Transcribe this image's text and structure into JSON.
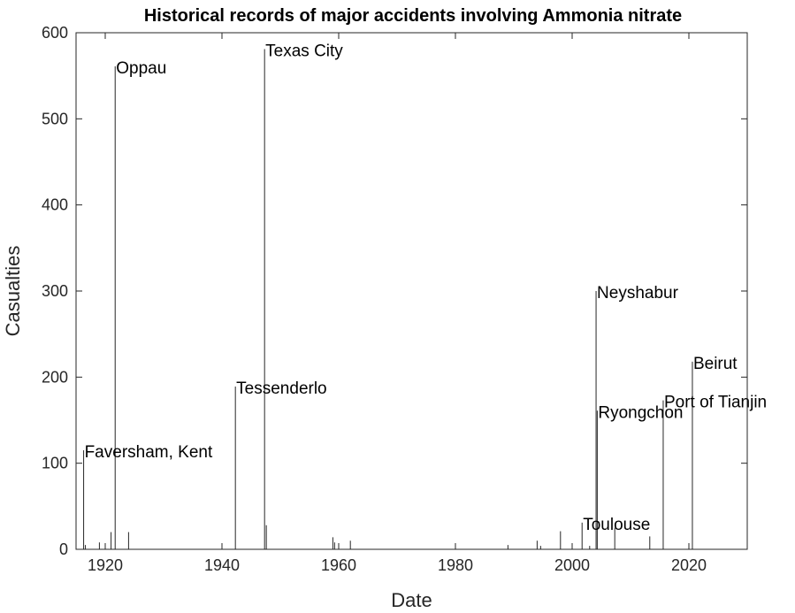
{
  "chart_data": {
    "type": "stem",
    "title": "Historical records of major accidents involving Ammonia nitrate",
    "xlabel": "Date",
    "ylabel": "Casualties",
    "xlim": [
      1915,
      2030
    ],
    "ylim": [
      0,
      600
    ],
    "xticks": [
      1920,
      1940,
      1960,
      1980,
      2000,
      2020
    ],
    "yticks": [
      0,
      100,
      200,
      300,
      400,
      500,
      600
    ],
    "grid": false,
    "line_color": "#262626",
    "points": [
      {
        "x": 1916.3,
        "y": 115,
        "label": "Faversham, Kent"
      },
      {
        "x": 1916.6,
        "y": 5,
        "label": ""
      },
      {
        "x": 1919.0,
        "y": 8,
        "label": ""
      },
      {
        "x": 1921.0,
        "y": 20,
        "label": ""
      },
      {
        "x": 1921.7,
        "y": 561,
        "label": "Oppau"
      },
      {
        "x": 1924.0,
        "y": 20,
        "label": ""
      },
      {
        "x": 1942.3,
        "y": 189,
        "label": "Tessenderlo"
      },
      {
        "x": 1947.3,
        "y": 581,
        "label": "Texas City"
      },
      {
        "x": 1947.6,
        "y": 28,
        "label": ""
      },
      {
        "x": 1959.0,
        "y": 14,
        "label": ""
      },
      {
        "x": 1959.3,
        "y": 8,
        "label": ""
      },
      {
        "x": 1962.0,
        "y": 10,
        "label": ""
      },
      {
        "x": 1989.0,
        "y": 5,
        "label": ""
      },
      {
        "x": 1994.0,
        "y": 10,
        "label": ""
      },
      {
        "x": 1994.6,
        "y": 4,
        "label": ""
      },
      {
        "x": 1998.0,
        "y": 21,
        "label": ""
      },
      {
        "x": 2001.7,
        "y": 31,
        "label": "Toulouse"
      },
      {
        "x": 2003.0,
        "y": 4,
        "label": ""
      },
      {
        "x": 2004.1,
        "y": 300,
        "label": "Neyshabur"
      },
      {
        "x": 2004.3,
        "y": 161,
        "label": "Ryongchon"
      },
      {
        "x": 2007.3,
        "y": 25,
        "label": ""
      },
      {
        "x": 2013.3,
        "y": 15,
        "label": ""
      },
      {
        "x": 2015.6,
        "y": 173,
        "label": "Port of Tianjin"
      },
      {
        "x": 2020.6,
        "y": 218,
        "label": "Beirut"
      }
    ]
  }
}
